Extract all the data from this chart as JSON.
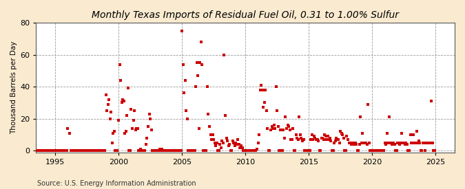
{
  "title": "Monthly Texas Imports of Residual Fuel Oil, 0.31 to 1.00% Sulfur",
  "ylabel": "Thousand Barrels per Day",
  "source": "Source: U.S. Energy Information Administration",
  "background_color": "#faebd0",
  "plot_bg_color": "#ffffff",
  "marker_color": "#cc0000",
  "xlim": [
    1993.5,
    2026.5
  ],
  "ylim": [
    -1,
    80
  ],
  "yticks": [
    0,
    20,
    40,
    60,
    80
  ],
  "xticks": [
    1995,
    2000,
    2005,
    2010,
    2015,
    2020,
    2025
  ],
  "title_fontsize": 10,
  "label_fontsize": 7.5,
  "tick_fontsize": 8,
  "source_fontsize": 7,
  "data": [
    [
      1993.583,
      0
    ],
    [
      1993.667,
      0
    ],
    [
      1993.75,
      0
    ],
    [
      1993.833,
      0
    ],
    [
      1993.917,
      0
    ],
    [
      1994.0,
      0
    ],
    [
      1994.083,
      0
    ],
    [
      1994.167,
      0
    ],
    [
      1994.25,
      0
    ],
    [
      1994.333,
      0
    ],
    [
      1994.417,
      0
    ],
    [
      1994.5,
      0
    ],
    [
      1994.583,
      0
    ],
    [
      1994.667,
      0
    ],
    [
      1994.75,
      0
    ],
    [
      1994.833,
      0
    ],
    [
      1994.917,
      0
    ],
    [
      1995.0,
      0
    ],
    [
      1995.083,
      0
    ],
    [
      1995.167,
      0
    ],
    [
      1995.25,
      0
    ],
    [
      1995.333,
      0
    ],
    [
      1995.417,
      0
    ],
    [
      1995.5,
      0
    ],
    [
      1995.583,
      0
    ],
    [
      1995.667,
      0
    ],
    [
      1995.75,
      0
    ],
    [
      1995.833,
      0
    ],
    [
      1995.917,
      0
    ],
    [
      1996.0,
      14
    ],
    [
      1996.167,
      11
    ],
    [
      1996.25,
      0
    ],
    [
      1996.333,
      0
    ],
    [
      1996.417,
      0
    ],
    [
      1996.5,
      0
    ],
    [
      1996.583,
      0
    ],
    [
      1996.667,
      0
    ],
    [
      1996.75,
      0
    ],
    [
      1996.833,
      0
    ],
    [
      1996.917,
      0
    ],
    [
      1997.0,
      0
    ],
    [
      1997.083,
      0
    ],
    [
      1997.167,
      0
    ],
    [
      1997.25,
      0
    ],
    [
      1997.333,
      0
    ],
    [
      1997.417,
      0
    ],
    [
      1997.5,
      0
    ],
    [
      1997.583,
      0
    ],
    [
      1997.667,
      0
    ],
    [
      1997.75,
      0
    ],
    [
      1997.833,
      0
    ],
    [
      1997.917,
      0
    ],
    [
      1998.0,
      0
    ],
    [
      1998.083,
      0
    ],
    [
      1998.167,
      0
    ],
    [
      1998.25,
      0
    ],
    [
      1998.333,
      0
    ],
    [
      1998.417,
      0
    ],
    [
      1998.5,
      0
    ],
    [
      1998.583,
      0
    ],
    [
      1998.667,
      0
    ],
    [
      1998.75,
      0
    ],
    [
      1998.833,
      0
    ],
    [
      1998.917,
      0
    ],
    [
      1999.0,
      35
    ],
    [
      1999.083,
      25
    ],
    [
      1999.167,
      29
    ],
    [
      1999.25,
      32
    ],
    [
      1999.333,
      20
    ],
    [
      1999.417,
      24
    ],
    [
      1999.5,
      5
    ],
    [
      1999.583,
      11
    ],
    [
      1999.667,
      12
    ],
    [
      1999.75,
      0
    ],
    [
      1999.833,
      0
    ],
    [
      1999.917,
      0
    ],
    [
      2000.0,
      19
    ],
    [
      2000.083,
      54
    ],
    [
      2000.167,
      44
    ],
    [
      2000.25,
      30
    ],
    [
      2000.333,
      32
    ],
    [
      2000.417,
      31
    ],
    [
      2000.5,
      11
    ],
    [
      2000.583,
      12
    ],
    [
      2000.667,
      22
    ],
    [
      2000.75,
      39
    ],
    [
      2000.833,
      0
    ],
    [
      2000.917,
      0
    ],
    [
      2001.0,
      26
    ],
    [
      2001.083,
      14
    ],
    [
      2001.167,
      19
    ],
    [
      2001.25,
      25
    ],
    [
      2001.333,
      13
    ],
    [
      2001.417,
      14
    ],
    [
      2001.5,
      14
    ],
    [
      2001.583,
      0
    ],
    [
      2001.667,
      0
    ],
    [
      2001.75,
      1
    ],
    [
      2001.833,
      0
    ],
    [
      2001.917,
      0
    ],
    [
      2002.0,
      0
    ],
    [
      2002.083,
      0
    ],
    [
      2002.167,
      4
    ],
    [
      2002.25,
      8
    ],
    [
      2002.333,
      15
    ],
    [
      2002.417,
      23
    ],
    [
      2002.5,
      20
    ],
    [
      2002.583,
      13
    ],
    [
      2002.667,
      0
    ],
    [
      2002.75,
      0
    ],
    [
      2002.833,
      0
    ],
    [
      2002.917,
      0
    ],
    [
      2003.0,
      0
    ],
    [
      2003.083,
      0
    ],
    [
      2003.167,
      0
    ],
    [
      2003.25,
      1
    ],
    [
      2003.333,
      0
    ],
    [
      2003.417,
      1
    ],
    [
      2003.5,
      0
    ],
    [
      2003.583,
      0
    ],
    [
      2003.667,
      0
    ],
    [
      2003.75,
      0
    ],
    [
      2003.833,
      0
    ],
    [
      2003.917,
      0
    ],
    [
      2004.0,
      0
    ],
    [
      2004.083,
      0
    ],
    [
      2004.167,
      0
    ],
    [
      2004.25,
      0
    ],
    [
      2004.333,
      0
    ],
    [
      2004.417,
      0
    ],
    [
      2004.5,
      0
    ],
    [
      2004.583,
      0
    ],
    [
      2004.667,
      0
    ],
    [
      2004.75,
      0
    ],
    [
      2004.833,
      0
    ],
    [
      2004.917,
      0
    ],
    [
      2005.0,
      75
    ],
    [
      2005.083,
      54
    ],
    [
      2005.167,
      36
    ],
    [
      2005.25,
      44
    ],
    [
      2005.333,
      25
    ],
    [
      2005.417,
      20
    ],
    [
      2005.5,
      0
    ],
    [
      2005.583,
      0
    ],
    [
      2005.667,
      0
    ],
    [
      2005.75,
      0
    ],
    [
      2005.833,
      0
    ],
    [
      2005.917,
      0
    ],
    [
      2006.0,
      0
    ],
    [
      2006.083,
      40
    ],
    [
      2006.167,
      55
    ],
    [
      2006.25,
      47
    ],
    [
      2006.333,
      14
    ],
    [
      2006.417,
      55
    ],
    [
      2006.5,
      68
    ],
    [
      2006.583,
      54
    ],
    [
      2006.667,
      0
    ],
    [
      2006.75,
      0
    ],
    [
      2006.833,
      0
    ],
    [
      2006.917,
      0
    ],
    [
      2007.0,
      40
    ],
    [
      2007.083,
      23
    ],
    [
      2007.167,
      15
    ],
    [
      2007.25,
      10
    ],
    [
      2007.333,
      7
    ],
    [
      2007.417,
      10
    ],
    [
      2007.5,
      7
    ],
    [
      2007.583,
      5
    ],
    [
      2007.667,
      3
    ],
    [
      2007.75,
      5
    ],
    [
      2007.833,
      0
    ],
    [
      2007.917,
      0
    ],
    [
      2008.0,
      4
    ],
    [
      2008.083,
      2
    ],
    [
      2008.167,
      6
    ],
    [
      2008.25,
      5
    ],
    [
      2008.333,
      60
    ],
    [
      2008.417,
      22
    ],
    [
      2008.5,
      8
    ],
    [
      2008.583,
      6
    ],
    [
      2008.667,
      3
    ],
    [
      2008.75,
      4
    ],
    [
      2008.833,
      0
    ],
    [
      2008.917,
      0
    ],
    [
      2009.0,
      6
    ],
    [
      2009.083,
      5
    ],
    [
      2009.167,
      3
    ],
    [
      2009.25,
      5
    ],
    [
      2009.333,
      4
    ],
    [
      2009.417,
      7
    ],
    [
      2009.5,
      4
    ],
    [
      2009.583,
      2
    ],
    [
      2009.667,
      3
    ],
    [
      2009.75,
      2
    ],
    [
      2009.833,
      0
    ],
    [
      2009.917,
      0
    ],
    [
      2010.0,
      0
    ],
    [
      2010.083,
      0
    ],
    [
      2010.167,
      0
    ],
    [
      2010.25,
      0
    ],
    [
      2010.333,
      0
    ],
    [
      2010.417,
      0
    ],
    [
      2010.5,
      0
    ],
    [
      2010.583,
      0
    ],
    [
      2010.667,
      0
    ],
    [
      2010.75,
      0
    ],
    [
      2010.833,
      0
    ],
    [
      2010.917,
      1
    ],
    [
      2011.0,
      5
    ],
    [
      2011.083,
      10
    ],
    [
      2011.167,
      38
    ],
    [
      2011.25,
      41
    ],
    [
      2011.333,
      38
    ],
    [
      2011.417,
      27
    ],
    [
      2011.5,
      30
    ],
    [
      2011.583,
      38
    ],
    [
      2011.667,
      25
    ],
    [
      2011.75,
      14
    ],
    [
      2011.833,
      0
    ],
    [
      2011.917,
      0
    ],
    [
      2012.0,
      13
    ],
    [
      2012.083,
      15
    ],
    [
      2012.167,
      14
    ],
    [
      2012.25,
      16
    ],
    [
      2012.333,
      14
    ],
    [
      2012.417,
      40
    ],
    [
      2012.5,
      25
    ],
    [
      2012.583,
      15
    ],
    [
      2012.667,
      0
    ],
    [
      2012.75,
      13
    ],
    [
      2012.833,
      0
    ],
    [
      2012.917,
      0
    ],
    [
      2013.0,
      13
    ],
    [
      2013.083,
      8
    ],
    [
      2013.167,
      21
    ],
    [
      2013.25,
      14
    ],
    [
      2013.333,
      16
    ],
    [
      2013.417,
      15
    ],
    [
      2013.5,
      13
    ],
    [
      2013.583,
      7
    ],
    [
      2013.667,
      7
    ],
    [
      2013.75,
      14
    ],
    [
      2013.833,
      0
    ],
    [
      2013.917,
      0
    ],
    [
      2014.0,
      10
    ],
    [
      2014.083,
      8
    ],
    [
      2014.167,
      7
    ],
    [
      2014.25,
      21
    ],
    [
      2014.333,
      10
    ],
    [
      2014.417,
      8
    ],
    [
      2014.5,
      6
    ],
    [
      2014.583,
      7
    ],
    [
      2014.667,
      0
    ],
    [
      2014.75,
      0
    ],
    [
      2014.833,
      0
    ],
    [
      2014.917,
      0
    ],
    [
      2015.0,
      0
    ],
    [
      2015.083,
      0
    ],
    [
      2015.167,
      7
    ],
    [
      2015.25,
      10
    ],
    [
      2015.333,
      7
    ],
    [
      2015.417,
      9
    ],
    [
      2015.5,
      8
    ],
    [
      2015.583,
      7
    ],
    [
      2015.667,
      7
    ],
    [
      2015.75,
      6
    ],
    [
      2015.833,
      0
    ],
    [
      2015.917,
      0
    ],
    [
      2016.0,
      8
    ],
    [
      2016.083,
      8
    ],
    [
      2016.167,
      7
    ],
    [
      2016.25,
      10
    ],
    [
      2016.333,
      9
    ],
    [
      2016.417,
      7
    ],
    [
      2016.5,
      9
    ],
    [
      2016.583,
      7
    ],
    [
      2016.667,
      8
    ],
    [
      2016.75,
      6
    ],
    [
      2016.833,
      0
    ],
    [
      2016.917,
      0
    ],
    [
      2017.0,
      5
    ],
    [
      2017.083,
      6
    ],
    [
      2017.167,
      8
    ],
    [
      2017.25,
      7
    ],
    [
      2017.333,
      7
    ],
    [
      2017.417,
      5
    ],
    [
      2017.5,
      12
    ],
    [
      2017.583,
      11
    ],
    [
      2017.667,
      10
    ],
    [
      2017.75,
      8
    ],
    [
      2017.833,
      0
    ],
    [
      2017.917,
      0
    ],
    [
      2018.0,
      9
    ],
    [
      2018.083,
      7
    ],
    [
      2018.167,
      5
    ],
    [
      2018.25,
      5
    ],
    [
      2018.333,
      4
    ],
    [
      2018.417,
      5
    ],
    [
      2018.5,
      5
    ],
    [
      2018.583,
      4
    ],
    [
      2018.667,
      5
    ],
    [
      2018.75,
      4
    ],
    [
      2018.833,
      0
    ],
    [
      2018.917,
      0
    ],
    [
      2019.0,
      4
    ],
    [
      2019.083,
      21
    ],
    [
      2019.167,
      5
    ],
    [
      2019.25,
      11
    ],
    [
      2019.333,
      5
    ],
    [
      2019.417,
      5
    ],
    [
      2019.5,
      5
    ],
    [
      2019.583,
      4
    ],
    [
      2019.667,
      29
    ],
    [
      2019.75,
      5
    ],
    [
      2019.833,
      0
    ],
    [
      2019.917,
      0
    ],
    [
      2020.0,
      0
    ],
    [
      2020.083,
      0
    ],
    [
      2020.167,
      0
    ],
    [
      2020.25,
      0
    ],
    [
      2020.333,
      0
    ],
    [
      2020.417,
      0
    ],
    [
      2020.5,
      0
    ],
    [
      2020.583,
      0
    ],
    [
      2020.667,
      0
    ],
    [
      2020.75,
      0
    ],
    [
      2020.833,
      0
    ],
    [
      2020.917,
      0
    ],
    [
      2021.0,
      5
    ],
    [
      2021.083,
      4
    ],
    [
      2021.167,
      11
    ],
    [
      2021.25,
      5
    ],
    [
      2021.333,
      21
    ],
    [
      2021.417,
      5
    ],
    [
      2021.5,
      5
    ],
    [
      2021.583,
      4
    ],
    [
      2021.667,
      5
    ],
    [
      2021.75,
      4
    ],
    [
      2021.833,
      0
    ],
    [
      2021.917,
      0
    ],
    [
      2022.0,
      5
    ],
    [
      2022.083,
      5
    ],
    [
      2022.167,
      4
    ],
    [
      2022.25,
      5
    ],
    [
      2022.333,
      11
    ],
    [
      2022.417,
      5
    ],
    [
      2022.5,
      5
    ],
    [
      2022.583,
      4
    ],
    [
      2022.667,
      5
    ],
    [
      2022.75,
      4
    ],
    [
      2022.833,
      0
    ],
    [
      2022.917,
      0
    ],
    [
      2023.0,
      10
    ],
    [
      2023.083,
      5
    ],
    [
      2023.167,
      5
    ],
    [
      2023.25,
      10
    ],
    [
      2023.333,
      5
    ],
    [
      2023.417,
      5
    ],
    [
      2023.5,
      12
    ],
    [
      2023.583,
      5
    ],
    [
      2023.667,
      6
    ],
    [
      2023.75,
      5
    ],
    [
      2023.833,
      0
    ],
    [
      2023.917,
      0
    ],
    [
      2024.0,
      5
    ],
    [
      2024.083,
      5
    ],
    [
      2024.167,
      0
    ],
    [
      2024.25,
      5
    ],
    [
      2024.333,
      5
    ],
    [
      2024.417,
      5
    ],
    [
      2024.5,
      5
    ],
    [
      2024.583,
      5
    ],
    [
      2024.667,
      31
    ],
    [
      2024.75,
      5
    ],
    [
      2024.833,
      0
    ],
    [
      2024.917,
      0
    ]
  ]
}
